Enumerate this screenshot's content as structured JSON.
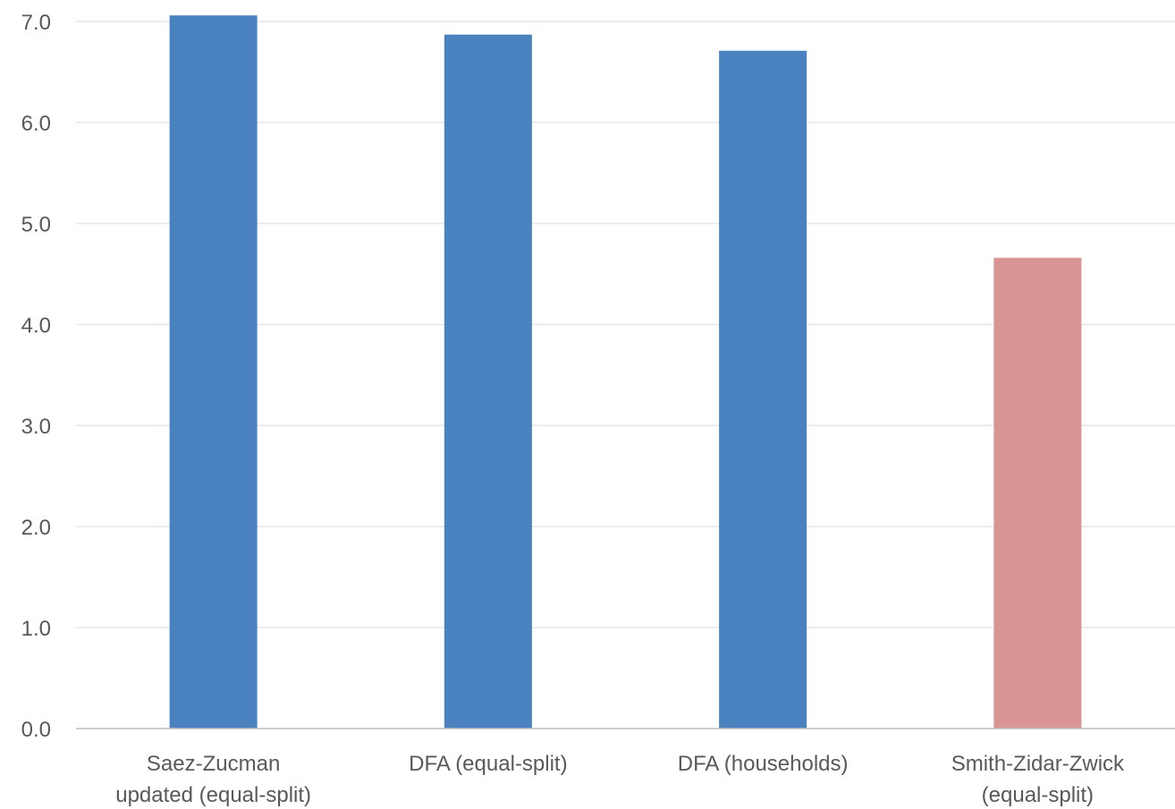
{
  "chart_data": {
    "type": "bar",
    "categories": [
      [
        "Saez-Zucman",
        "updated (equal-split)"
      ],
      [
        "DFA (equal-split)"
      ],
      [
        "DFA (households)"
      ],
      [
        "Smith-Zidar-Zwick",
        "(equal-split)"
      ]
    ],
    "values": [
      7.06,
      6.87,
      6.71,
      4.66
    ],
    "colors": [
      "#4a81bf",
      "#4a81bf",
      "#4a81bf",
      "#d99594"
    ],
    "ylim": [
      0,
      7
    ],
    "yticks": [
      "0.0",
      "1.0",
      "2.0",
      "3.0",
      "4.0",
      "5.0",
      "6.0",
      "7.0"
    ],
    "grid": true,
    "legend": false
  }
}
